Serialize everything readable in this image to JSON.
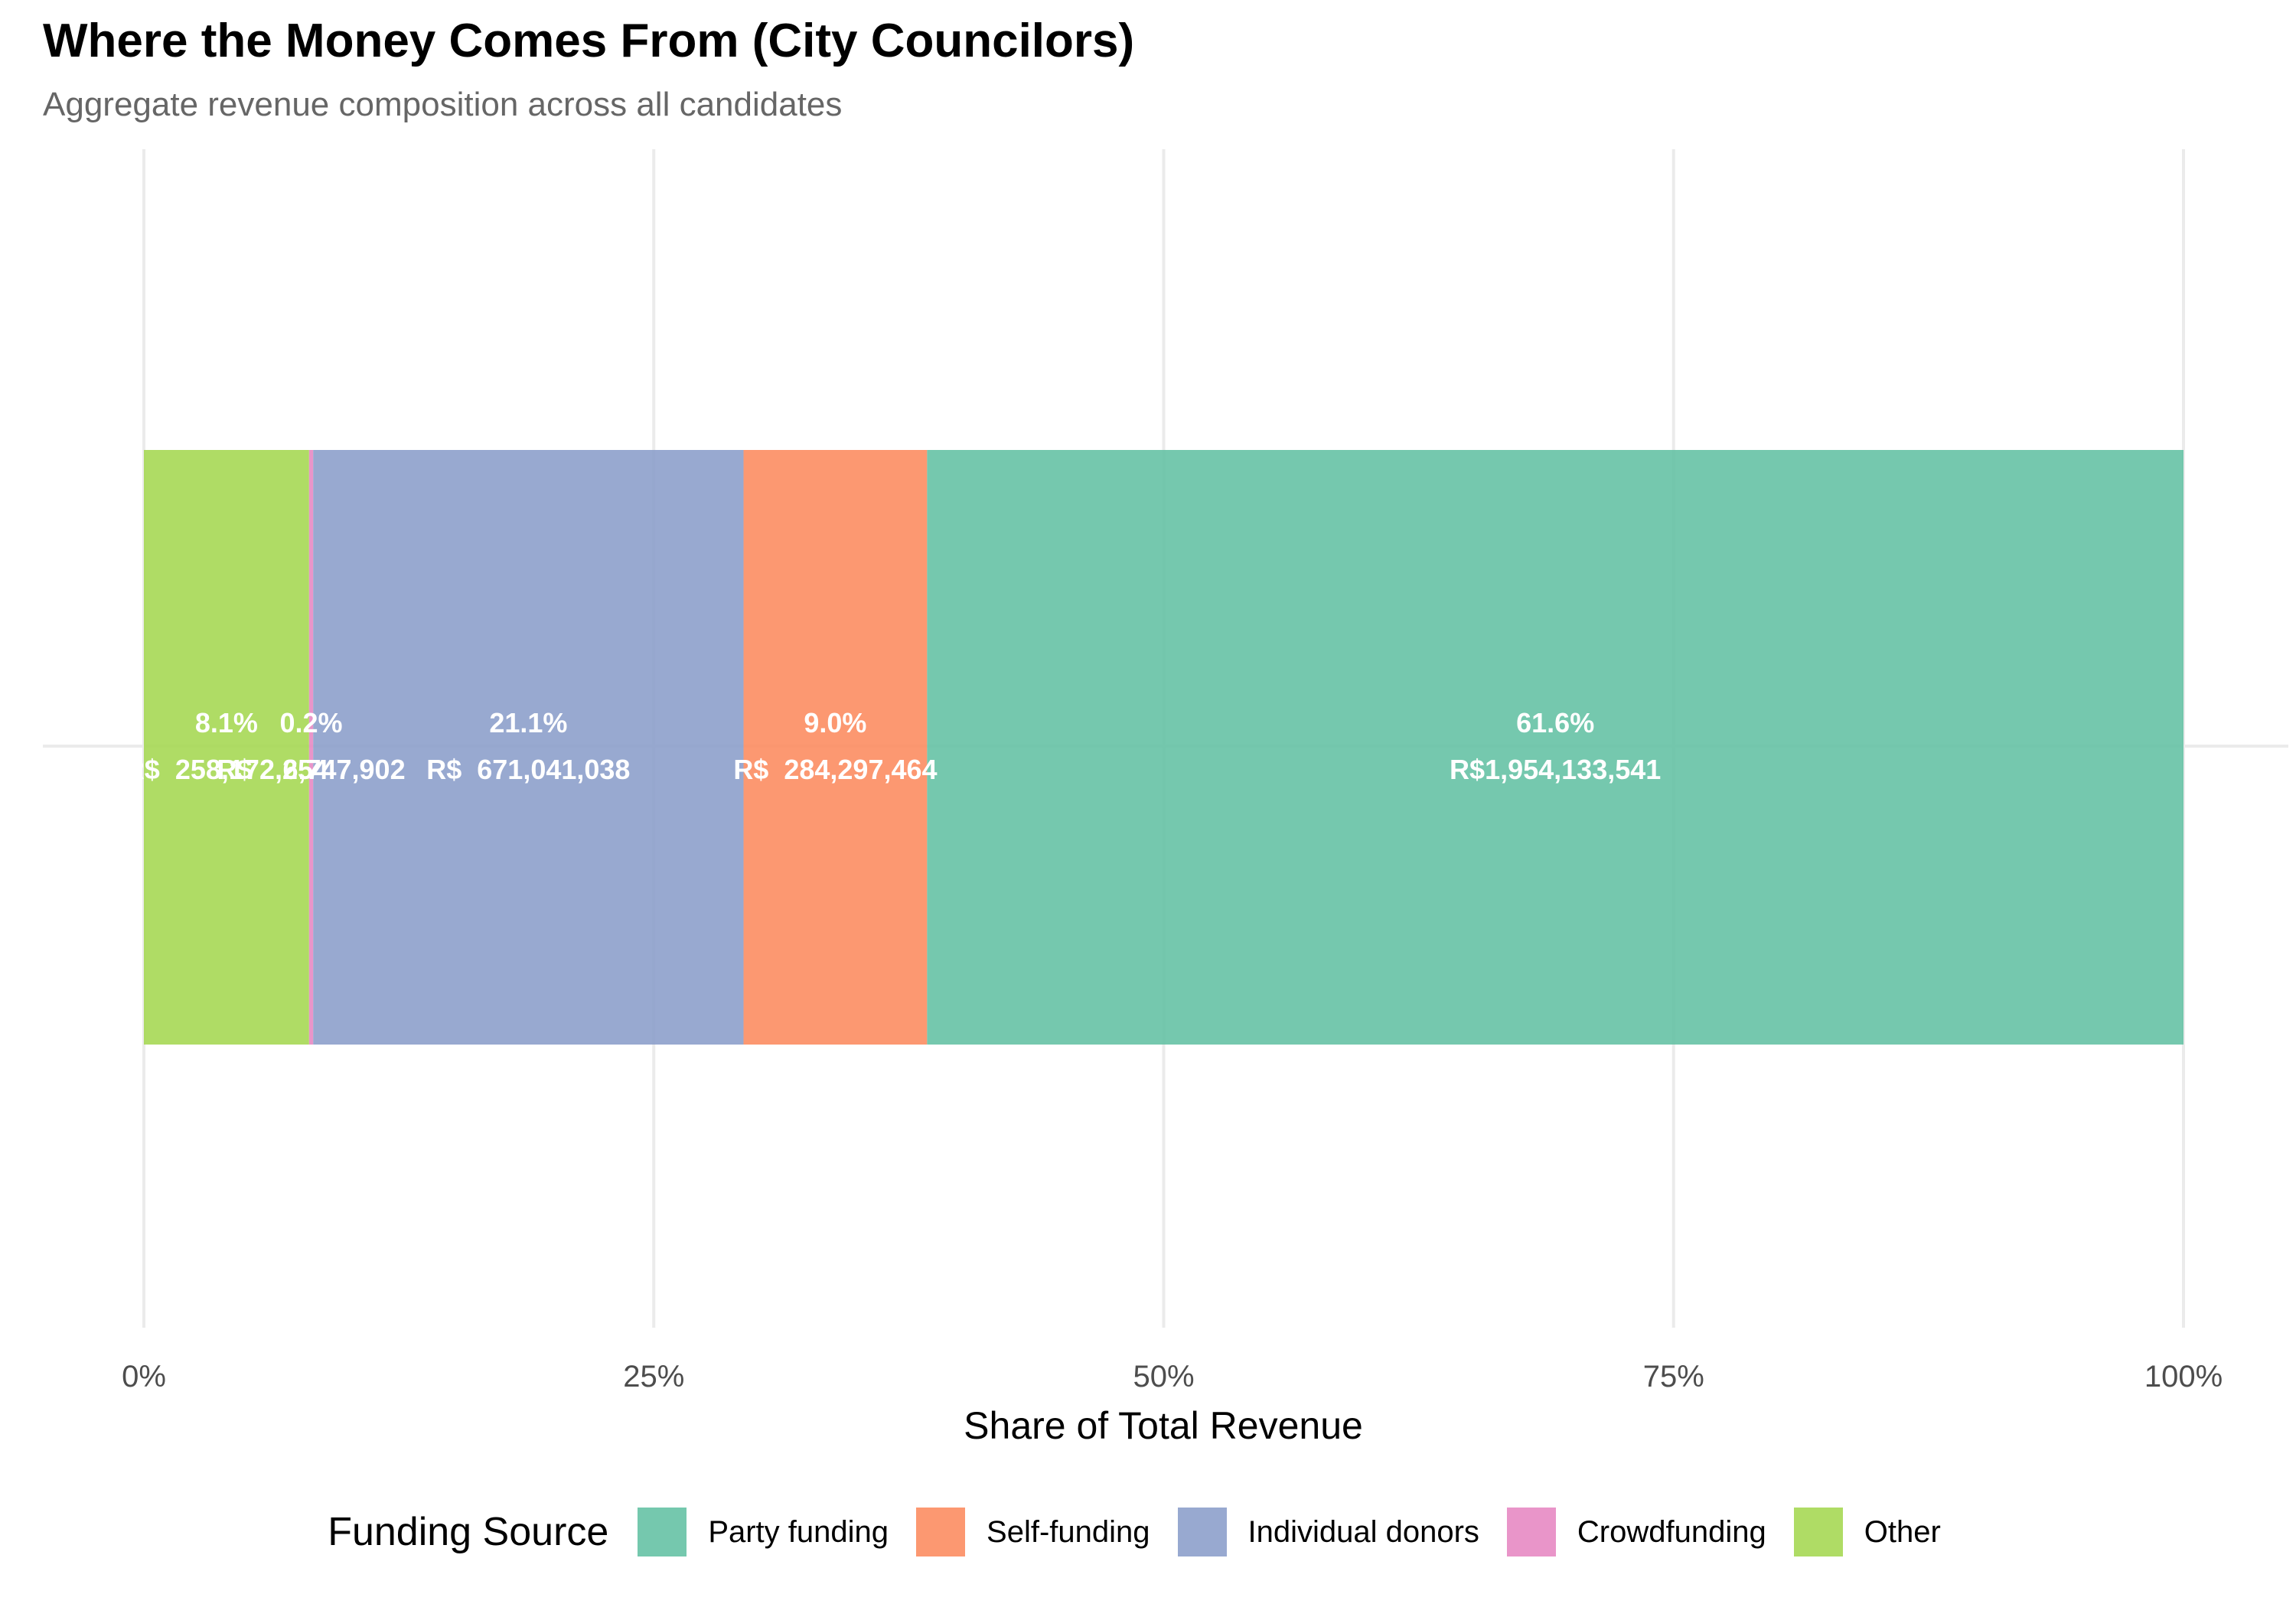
{
  "title": "Where the Money Comes From (City Councilors)",
  "subtitle": "Aggregate revenue composition across all candidates",
  "chart_data": {
    "type": "bar",
    "orientation": "horizontal-stacked-100",
    "title": "Where the Money Comes From (City Councilors)",
    "subtitle": "Aggregate revenue composition across all candidates",
    "xlabel": "Share of Total Revenue",
    "ylabel": "",
    "xlim": [
      0,
      100
    ],
    "x_ticks": [
      "0%",
      "25%",
      "50%",
      "75%",
      "100%"
    ],
    "x_tick_values": [
      0,
      25,
      50,
      75,
      100
    ],
    "grid": true,
    "legend_title": "Funding Source",
    "legend_position": "bottom",
    "stack_order": [
      "Other",
      "Crowdfunding",
      "Individual donors",
      "Self-funding",
      "Party funding"
    ],
    "series": [
      {
        "name": "Party funding",
        "color": "#66c2a5",
        "share": 61.6,
        "pct_label": "61.6%",
        "amount_label": "R$1,954,133,541"
      },
      {
        "name": "Self-funding",
        "color": "#fc8d62",
        "share": 9.0,
        "pct_label": "9.0%",
        "amount_label": "R$  284,297,464"
      },
      {
        "name": "Individual donors",
        "color": "#8da0cb",
        "share": 21.1,
        "pct_label": "21.1%",
        "amount_label": "R$  671,041,038"
      },
      {
        "name": "Crowdfunding",
        "color": "#e78ac3",
        "share": 0.2,
        "pct_label": "0.2%",
        "amount_label": "R$    6,747,902"
      },
      {
        "name": "Other",
        "color": "#a6d854",
        "share": 8.1,
        "pct_label": "8.1%",
        "amount_label": "R$  258,172,254"
      }
    ]
  }
}
